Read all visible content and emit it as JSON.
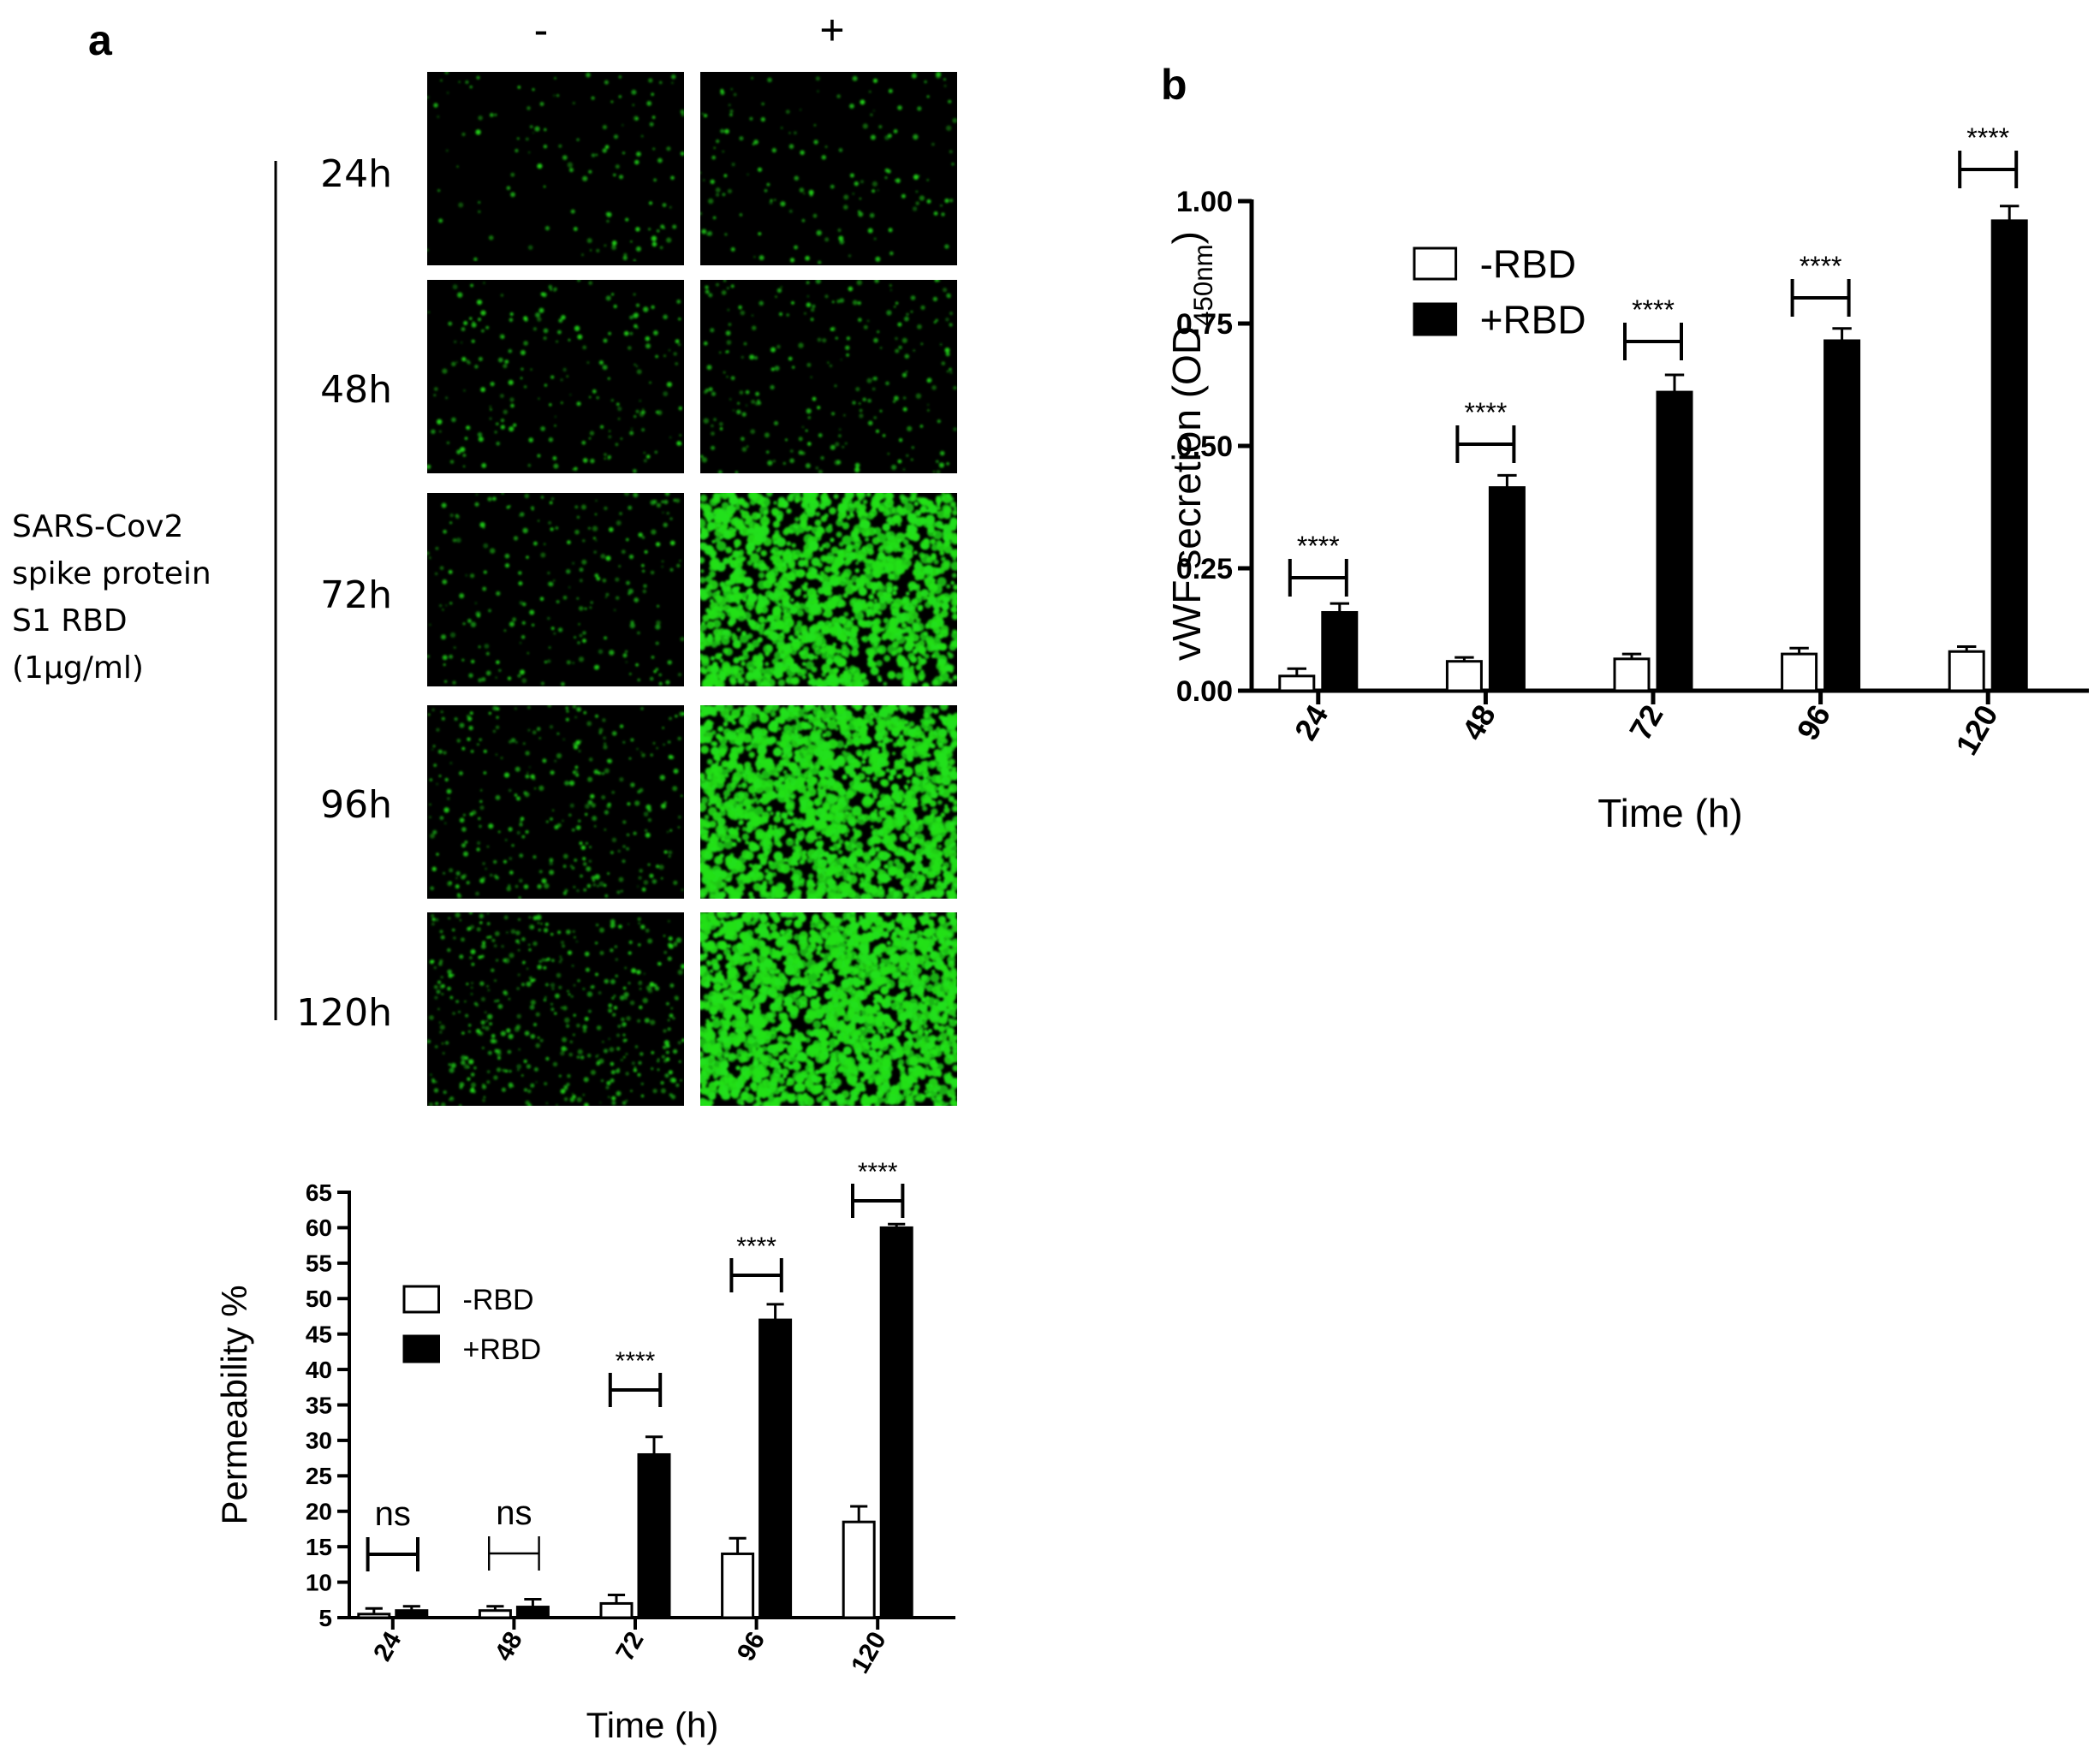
{
  "panel_a": {
    "letter": "a",
    "col_minus": "-",
    "col_plus": "+",
    "side_label": [
      "SARS-Cov2",
      "spike protein",
      "S1 RBD",
      "(1µg/ml)"
    ],
    "rows": [
      {
        "label": "24h",
        "minus_density": 0.05,
        "plus_density": 0.06
      },
      {
        "label": "48h",
        "minus_density": 0.08,
        "plus_density": 0.09
      },
      {
        "label": "72h",
        "minus_density": 0.09,
        "plus_density": 0.55
      },
      {
        "label": "96h",
        "minus_density": 0.12,
        "plus_density": 0.62
      },
      {
        "label": "120h",
        "minus_density": 0.18,
        "plus_density": 0.72
      }
    ]
  },
  "panel_b": {
    "letter": "b"
  },
  "colors": {
    "fluorescence": "#22e01a",
    "bar_dark": "#000000",
    "bar_light": "#ffffff"
  },
  "chart_data": [
    {
      "id": "permeability",
      "type": "bar",
      "categories": [
        "24",
        "48",
        "72",
        "96",
        "120"
      ],
      "series": [
        {
          "name": "-RBD",
          "values": [
            5.5,
            6,
            7,
            14,
            18.5
          ],
          "errors": [
            0.8,
            0.6,
            1.2,
            2.2,
            2.2
          ]
        },
        {
          "name": "+RBD",
          "values": [
            6,
            6.5,
            28,
            47,
            60
          ],
          "errors": [
            0.6,
            1.1,
            2.5,
            2.2,
            0.5
          ]
        }
      ],
      "xlabel": "Time (h)",
      "ylabel": "Permeability %",
      "ylim": [
        5,
        65
      ],
      "yticks": [
        "5",
        "10",
        "15",
        "20",
        "25",
        "30",
        "35",
        "40",
        "45",
        "50",
        "55",
        "60",
        "65"
      ],
      "legend_position": "upper-left",
      "significance": [
        "ns",
        "ns",
        "****",
        "****",
        "****"
      ]
    },
    {
      "id": "vwf",
      "type": "bar",
      "categories": [
        "24",
        "48",
        "72",
        "96",
        "120"
      ],
      "series": [
        {
          "name": "-RBD",
          "values": [
            0.03,
            0.06,
            0.065,
            0.075,
            0.08
          ],
          "errors": [
            0.015,
            0.008,
            0.01,
            0.012,
            0.01
          ]
        },
        {
          "name": "+RBD",
          "values": [
            0.16,
            0.415,
            0.61,
            0.715,
            0.96
          ],
          "errors": [
            0.018,
            0.025,
            0.035,
            0.025,
            0.03
          ]
        }
      ],
      "xlabel": "Time (h)",
      "ylabel_main": "vWF secretion (OD",
      "ylabel_sub": "450nm",
      "ylabel_end": ")",
      "ylim": [
        0,
        1.0
      ],
      "yticks": [
        "0.00",
        "0.25",
        "0.50",
        "0.75",
        "1.00"
      ],
      "legend_position": "upper-left",
      "significance": [
        "****",
        "****",
        "****",
        "****",
        "****"
      ]
    }
  ]
}
